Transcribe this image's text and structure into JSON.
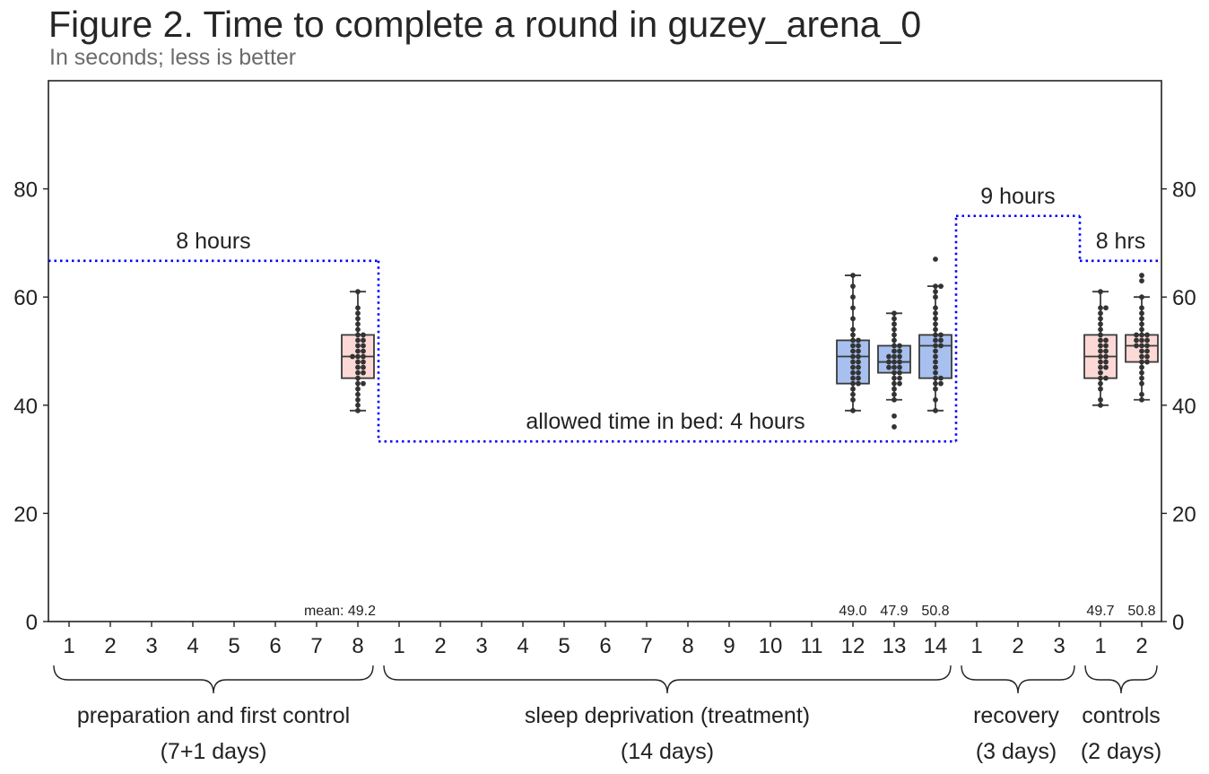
{
  "chart_data": {
    "type": "box",
    "title": "Figure 2. Time to complete a round in guzey_arena_0",
    "subtitle": "In seconds; less is better",
    "ylim": [
      0,
      100
    ],
    "yticks": [
      0,
      20,
      40,
      60,
      80
    ],
    "grid": false,
    "colors": {
      "control": "#fcd9d6",
      "treatment": "#a7c0ef",
      "sleep_line": "#0000ff",
      "points": "#333333"
    },
    "phases": [
      {
        "name": "preparation and first control",
        "duration": "(7+1 days)",
        "days": [
          "1",
          "2",
          "3",
          "4",
          "5",
          "6",
          "7",
          "8"
        ]
      },
      {
        "name": "sleep deprivation (treatment)",
        "duration": "(14 days)",
        "days": [
          "1",
          "2",
          "3",
          "4",
          "5",
          "6",
          "7",
          "8",
          "9",
          "10",
          "11",
          "12",
          "13",
          "14"
        ]
      },
      {
        "name": "recovery",
        "duration": "(3 days)",
        "days": [
          "1",
          "2",
          "3"
        ]
      },
      {
        "name": "controls",
        "duration": "(2 days)",
        "days": [
          "1",
          "2"
        ]
      }
    ],
    "sleep_allowance": [
      {
        "label": "8 hours",
        "value": 66.7,
        "from": 0,
        "to": 8
      },
      {
        "label": "allowed time in bed: 4 hours",
        "value": 33.3,
        "from": 8,
        "to": 22
      },
      {
        "label": "9 hours",
        "value": 75,
        "from": 22,
        "to": 25
      },
      {
        "label": "8 hrs",
        "value": 66.7,
        "from": 25,
        "to": 27
      }
    ],
    "boxes": [
      {
        "index": 7,
        "group": "control",
        "mean_label": "mean: 49.2",
        "whisker_low": 39,
        "q1": 45,
        "median": 49,
        "q3": 53,
        "whisker_high": 61,
        "points": [
          39,
          40,
          41,
          42,
          43,
          44,
          44,
          45,
          46,
          46,
          47,
          47,
          48,
          48,
          49,
          49,
          49,
          50,
          50,
          51,
          51,
          52,
          52,
          53,
          53,
          54,
          55,
          56,
          57,
          58,
          61
        ]
      },
      {
        "index": 19,
        "group": "treatment",
        "mean_label": "49.0",
        "whisker_low": 39,
        "q1": 44,
        "median": 49,
        "q3": 52,
        "whisker_high": 64,
        "points": [
          39,
          41,
          42,
          43,
          44,
          44,
          45,
          45,
          46,
          46,
          47,
          47,
          48,
          48,
          49,
          49,
          50,
          50,
          51,
          51,
          52,
          52,
          53,
          54,
          56,
          58,
          60,
          62,
          64
        ]
      },
      {
        "index": 20,
        "group": "treatment",
        "mean_label": "47.9",
        "whisker_low": 41,
        "q1": 46,
        "median": 48,
        "q3": 51,
        "whisker_high": 57,
        "points": [
          36,
          38,
          41,
          42,
          43,
          44,
          44,
          45,
          45,
          46,
          46,
          47,
          47,
          47,
          48,
          48,
          48,
          49,
          49,
          49,
          50,
          50,
          51,
          51,
          52,
          53,
          54,
          55,
          56,
          57
        ]
      },
      {
        "index": 21,
        "group": "treatment",
        "mean_label": "50.8",
        "whisker_low": 39,
        "q1": 45,
        "median": 51,
        "q3": 53,
        "whisker_high": 62,
        "points": [
          39,
          41,
          43,
          44,
          44,
          45,
          45,
          46,
          47,
          48,
          49,
          50,
          51,
          51,
          52,
          52,
          53,
          53,
          54,
          55,
          56,
          57,
          58,
          60,
          61,
          62,
          62,
          67
        ]
      },
      {
        "index": 25,
        "group": "control",
        "mean_label": "49.7",
        "whisker_low": 40,
        "q1": 45,
        "median": 49,
        "q3": 53,
        "whisker_high": 61,
        "points": [
          40,
          41,
          43,
          44,
          45,
          45,
          46,
          47,
          47,
          48,
          48,
          49,
          49,
          50,
          50,
          51,
          51,
          52,
          52,
          53,
          54,
          55,
          56,
          57,
          58,
          58,
          61
        ]
      },
      {
        "index": 26,
        "group": "control",
        "mean_label": "50.8",
        "whisker_low": 41,
        "q1": 48,
        "median": 51,
        "q3": 53,
        "whisker_high": 60,
        "points": [
          41,
          42,
          44,
          45,
          46,
          47,
          48,
          48,
          49,
          49,
          50,
          50,
          51,
          51,
          51,
          52,
          52,
          52,
          53,
          53,
          53,
          54,
          55,
          56,
          57,
          58,
          60,
          63,
          64
        ]
      }
    ]
  }
}
